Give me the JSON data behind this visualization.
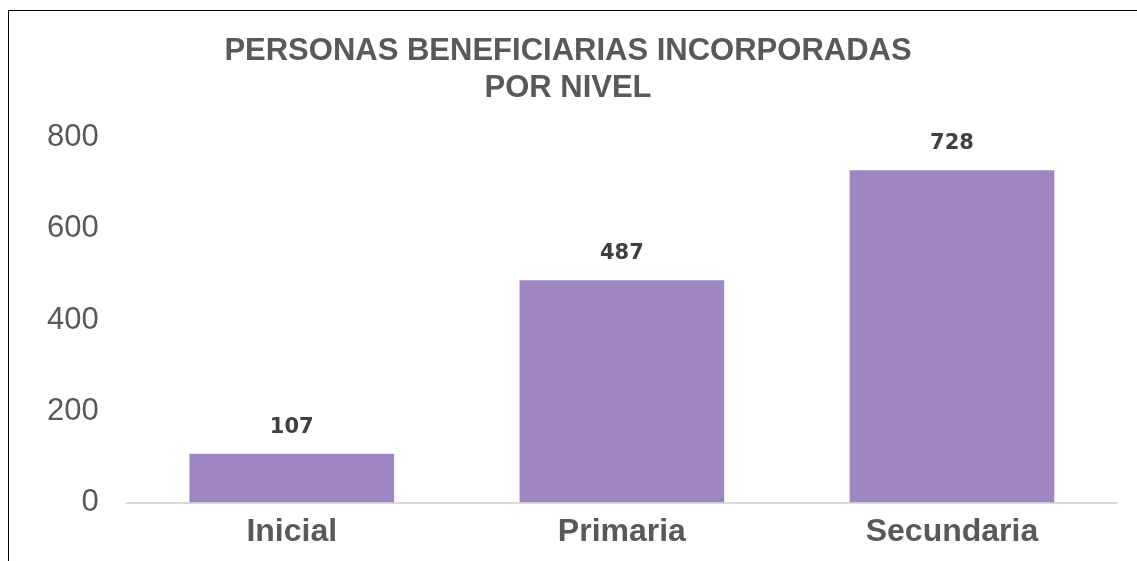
{
  "chart_data": {
    "type": "bar",
    "title": "PERSONAS BENEFICIARIAS INCORPORADAS\nPOR NIVEL",
    "categories": [
      "Inicial",
      "Primaria",
      "Secundaria"
    ],
    "values": [
      107,
      487,
      728
    ],
    "color": "#9e86c2",
    "ylim": [
      0,
      800
    ],
    "yticks": [
      0,
      200,
      400,
      600,
      800
    ],
    "grid": false,
    "data_labels": true
  }
}
